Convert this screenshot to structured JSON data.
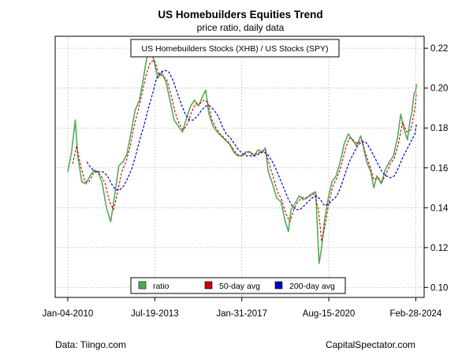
{
  "chart_data": {
    "type": "line",
    "title": "US Homebuilders Equities Trend",
    "subtitle": "price ratio, daily data",
    "inset_label": "US Homebuilders Stocks (XHB) / US Stocks (SPY)",
    "xlabel": "",
    "ylabel": "",
    "x_ticks": [
      "Jan-04-2010",
      "Jul-19-2013",
      "Jan-31-2017",
      "Aug-15-2020",
      "Feb-28-2024"
    ],
    "y_ticks": [
      "0.10",
      "0.12",
      "0.14",
      "0.16",
      "0.18",
      "0.20",
      "0.22"
    ],
    "xlim": [
      "2009-07-01",
      "2024-07-01"
    ],
    "ylim": [
      0.095,
      0.226
    ],
    "grid": true,
    "legend_position": "bottom-center",
    "series": [
      {
        "name": "ratio",
        "color": "#55aa55",
        "points": [
          [
            "2010-01-04",
            0.158
          ],
          [
            "2010-03-01",
            0.168
          ],
          [
            "2010-04-26",
            0.184
          ],
          [
            "2010-06-01",
            0.166
          ],
          [
            "2010-08-01",
            0.153
          ],
          [
            "2010-10-01",
            0.152
          ],
          [
            "2010-12-01",
            0.156
          ],
          [
            "2011-02-01",
            0.159
          ],
          [
            "2011-04-01",
            0.158
          ],
          [
            "2011-06-01",
            0.152
          ],
          [
            "2011-08-01",
            0.14
          ],
          [
            "2011-10-03",
            0.133
          ],
          [
            "2011-12-01",
            0.146
          ],
          [
            "2012-02-01",
            0.161
          ],
          [
            "2012-04-02",
            0.163
          ],
          [
            "2012-06-01",
            0.167
          ],
          [
            "2012-08-01",
            0.178
          ],
          [
            "2012-10-01",
            0.189
          ],
          [
            "2012-12-03",
            0.194
          ],
          [
            "2013-02-01",
            0.205
          ],
          [
            "2013-03-15",
            0.214
          ],
          [
            "2013-05-15",
            0.221
          ],
          [
            "2013-07-19",
            0.212
          ],
          [
            "2013-09-01",
            0.205
          ],
          [
            "2013-11-01",
            0.208
          ],
          [
            "2014-01-02",
            0.203
          ],
          [
            "2014-03-01",
            0.194
          ],
          [
            "2014-05-01",
            0.184
          ],
          [
            "2014-07-01",
            0.181
          ],
          [
            "2014-09-02",
            0.178
          ],
          [
            "2014-11-03",
            0.185
          ],
          [
            "2015-01-02",
            0.191
          ],
          [
            "2015-03-02",
            0.194
          ],
          [
            "2015-05-01",
            0.191
          ],
          [
            "2015-07-01",
            0.196
          ],
          [
            "2015-08-14",
            0.199
          ],
          [
            "2015-10-01",
            0.187
          ],
          [
            "2015-12-01",
            0.181
          ],
          [
            "2016-02-01",
            0.178
          ],
          [
            "2016-04-01",
            0.176
          ],
          [
            "2016-06-01",
            0.174
          ],
          [
            "2016-08-01",
            0.172
          ],
          [
            "2016-10-03",
            0.168
          ],
          [
            "2016-12-01",
            0.166
          ],
          [
            "2017-01-31",
            0.166
          ],
          [
            "2017-04-03",
            0.168
          ],
          [
            "2017-06-01",
            0.168
          ],
          [
            "2017-08-01",
            0.166
          ],
          [
            "2017-10-02",
            0.169
          ],
          [
            "2017-12-01",
            0.168
          ],
          [
            "2018-01-16",
            0.17
          ],
          [
            "2018-03-01",
            0.158
          ],
          [
            "2018-05-01",
            0.152
          ],
          [
            "2018-07-02",
            0.145
          ],
          [
            "2018-09-04",
            0.143
          ],
          [
            "2018-11-01",
            0.134
          ],
          [
            "2018-12-24",
            0.128
          ],
          [
            "2019-02-01",
            0.139
          ],
          [
            "2019-04-01",
            0.142
          ],
          [
            "2019-06-03",
            0.146
          ],
          [
            "2019-08-01",
            0.144
          ],
          [
            "2019-10-01",
            0.145
          ],
          [
            "2019-12-02",
            0.147
          ],
          [
            "2020-02-03",
            0.148
          ],
          [
            "2020-03-23",
            0.112
          ],
          [
            "2020-05-01",
            0.12
          ],
          [
            "2020-06-15",
            0.134
          ],
          [
            "2020-08-15",
            0.146
          ],
          [
            "2020-10-01",
            0.153
          ],
          [
            "2020-12-01",
            0.156
          ],
          [
            "2021-02-01",
            0.163
          ],
          [
            "2021-04-01",
            0.172
          ],
          [
            "2021-06-01",
            0.177
          ],
          [
            "2021-08-02",
            0.174
          ],
          [
            "2021-10-01",
            0.171
          ],
          [
            "2021-12-01",
            0.176
          ],
          [
            "2022-01-03",
            0.172
          ],
          [
            "2022-03-01",
            0.163
          ],
          [
            "2022-05-02",
            0.158
          ],
          [
            "2022-06-15",
            0.15
          ],
          [
            "2022-08-01",
            0.156
          ],
          [
            "2022-10-03",
            0.152
          ],
          [
            "2022-12-01",
            0.159
          ],
          [
            "2023-02-01",
            0.163
          ],
          [
            "2023-04-03",
            0.166
          ],
          [
            "2023-06-01",
            0.175
          ],
          [
            "2023-07-20",
            0.187
          ],
          [
            "2023-09-01",
            0.18
          ],
          [
            "2023-10-27",
            0.174
          ],
          [
            "2023-12-01",
            0.183
          ],
          [
            "2024-01-02",
            0.188
          ],
          [
            "2024-02-01",
            0.197
          ],
          [
            "2024-02-28",
            0.199
          ],
          [
            "2024-03-10",
            0.202
          ]
        ]
      },
      {
        "name": "50-day avg",
        "color": "#cc0000",
        "points": [
          [
            "2010-03-15",
            0.162
          ],
          [
            "2010-05-15",
            0.171
          ],
          [
            "2010-07-15",
            0.161
          ],
          [
            "2010-09-15",
            0.153
          ],
          [
            "2010-11-15",
            0.153
          ],
          [
            "2011-01-15",
            0.157
          ],
          [
            "2011-03-15",
            0.158
          ],
          [
            "2011-05-15",
            0.156
          ],
          [
            "2011-07-15",
            0.152
          ],
          [
            "2011-09-15",
            0.143
          ],
          [
            "2011-11-15",
            0.139
          ],
          [
            "2012-01-15",
            0.148
          ],
          [
            "2012-03-15",
            0.158
          ],
          [
            "2012-05-15",
            0.163
          ],
          [
            "2012-07-15",
            0.17
          ],
          [
            "2012-09-15",
            0.181
          ],
          [
            "2012-11-15",
            0.189
          ],
          [
            "2013-01-15",
            0.198
          ],
          [
            "2013-03-15",
            0.207
          ],
          [
            "2013-05-15",
            0.213
          ],
          [
            "2013-07-15",
            0.214
          ],
          [
            "2013-09-15",
            0.207
          ],
          [
            "2013-11-15",
            0.206
          ],
          [
            "2014-01-15",
            0.204
          ],
          [
            "2014-03-15",
            0.197
          ],
          [
            "2014-05-15",
            0.188
          ],
          [
            "2014-07-15",
            0.182
          ],
          [
            "2014-09-15",
            0.179
          ],
          [
            "2014-11-15",
            0.182
          ],
          [
            "2015-01-15",
            0.188
          ],
          [
            "2015-03-15",
            0.192
          ],
          [
            "2015-05-15",
            0.192
          ],
          [
            "2015-07-15",
            0.194
          ],
          [
            "2015-09-15",
            0.193
          ],
          [
            "2015-11-15",
            0.184
          ],
          [
            "2016-01-15",
            0.18
          ],
          [
            "2016-03-15",
            0.177
          ],
          [
            "2016-05-15",
            0.175
          ],
          [
            "2016-07-15",
            0.173
          ],
          [
            "2016-09-15",
            0.17
          ],
          [
            "2016-11-15",
            0.167
          ],
          [
            "2017-01-15",
            0.166
          ],
          [
            "2017-03-15",
            0.167
          ],
          [
            "2017-05-15",
            0.168
          ],
          [
            "2017-07-15",
            0.167
          ],
          [
            "2017-09-15",
            0.167
          ],
          [
            "2017-11-15",
            0.168
          ],
          [
            "2018-01-15",
            0.169
          ],
          [
            "2018-03-15",
            0.162
          ],
          [
            "2018-05-15",
            0.155
          ],
          [
            "2018-07-15",
            0.148
          ],
          [
            "2018-09-15",
            0.144
          ],
          [
            "2018-11-15",
            0.137
          ],
          [
            "2019-01-15",
            0.133
          ],
          [
            "2019-03-15",
            0.139
          ],
          [
            "2019-05-15",
            0.143
          ],
          [
            "2019-07-15",
            0.145
          ],
          [
            "2019-09-15",
            0.145
          ],
          [
            "2019-11-15",
            0.146
          ],
          [
            "2020-01-15",
            0.147
          ],
          [
            "2020-03-15",
            0.139
          ],
          [
            "2020-05-01",
            0.123
          ],
          [
            "2020-06-15",
            0.13
          ],
          [
            "2020-08-15",
            0.142
          ],
          [
            "2020-10-15",
            0.151
          ],
          [
            "2020-12-15",
            0.155
          ],
          [
            "2021-02-15",
            0.161
          ],
          [
            "2021-04-15",
            0.169
          ],
          [
            "2021-06-15",
            0.175
          ],
          [
            "2021-08-15",
            0.174
          ],
          [
            "2021-10-15",
            0.172
          ],
          [
            "2021-12-15",
            0.174
          ],
          [
            "2022-02-15",
            0.167
          ],
          [
            "2022-04-15",
            0.161
          ],
          [
            "2022-06-15",
            0.154
          ],
          [
            "2022-08-15",
            0.155
          ],
          [
            "2022-10-15",
            0.153
          ],
          [
            "2022-12-15",
            0.157
          ],
          [
            "2023-02-15",
            0.162
          ],
          [
            "2023-04-15",
            0.165
          ],
          [
            "2023-06-15",
            0.172
          ],
          [
            "2023-08-15",
            0.183
          ],
          [
            "2023-10-15",
            0.178
          ],
          [
            "2023-12-15",
            0.179
          ],
          [
            "2024-01-15",
            0.184
          ],
          [
            "2024-02-15",
            0.19
          ],
          [
            "2024-03-10",
            0.198
          ]
        ]
      },
      {
        "name": "200-day avg",
        "color": "#0000cc",
        "points": [
          [
            "2010-10-15",
            0.163
          ],
          [
            "2010-12-15",
            0.16
          ],
          [
            "2011-02-15",
            0.158
          ],
          [
            "2011-04-15",
            0.158
          ],
          [
            "2011-06-15",
            0.158
          ],
          [
            "2011-08-15",
            0.156
          ],
          [
            "2011-10-15",
            0.152
          ],
          [
            "2011-12-15",
            0.149
          ],
          [
            "2012-02-15",
            0.149
          ],
          [
            "2012-04-15",
            0.151
          ],
          [
            "2012-06-15",
            0.155
          ],
          [
            "2012-08-15",
            0.16
          ],
          [
            "2012-10-15",
            0.167
          ],
          [
            "2012-12-15",
            0.175
          ],
          [
            "2013-02-15",
            0.182
          ],
          [
            "2013-04-15",
            0.19
          ],
          [
            "2013-06-15",
            0.197
          ],
          [
            "2013-08-15",
            0.205
          ],
          [
            "2013-10-15",
            0.208
          ],
          [
            "2013-12-15",
            0.209
          ],
          [
            "2014-02-15",
            0.208
          ],
          [
            "2014-04-15",
            0.204
          ],
          [
            "2014-06-15",
            0.198
          ],
          [
            "2014-08-15",
            0.192
          ],
          [
            "2014-10-15",
            0.187
          ],
          [
            "2014-12-15",
            0.184
          ],
          [
            "2015-02-15",
            0.184
          ],
          [
            "2015-04-15",
            0.186
          ],
          [
            "2015-06-15",
            0.189
          ],
          [
            "2015-08-15",
            0.191
          ],
          [
            "2015-10-15",
            0.191
          ],
          [
            "2015-12-15",
            0.189
          ],
          [
            "2016-02-15",
            0.186
          ],
          [
            "2016-04-15",
            0.181
          ],
          [
            "2016-06-15",
            0.177
          ],
          [
            "2016-08-15",
            0.175
          ],
          [
            "2016-10-15",
            0.172
          ],
          [
            "2016-12-15",
            0.169
          ],
          [
            "2017-02-15",
            0.167
          ],
          [
            "2017-04-15",
            0.166
          ],
          [
            "2017-06-15",
            0.166
          ],
          [
            "2017-08-15",
            0.166
          ],
          [
            "2017-10-15",
            0.167
          ],
          [
            "2017-12-15",
            0.168
          ],
          [
            "2018-02-15",
            0.167
          ],
          [
            "2018-04-15",
            0.164
          ],
          [
            "2018-06-15",
            0.16
          ],
          [
            "2018-08-15",
            0.155
          ],
          [
            "2018-10-15",
            0.15
          ],
          [
            "2018-12-15",
            0.145
          ],
          [
            "2019-02-15",
            0.141
          ],
          [
            "2019-04-15",
            0.139
          ],
          [
            "2019-06-15",
            0.139
          ],
          [
            "2019-08-15",
            0.141
          ],
          [
            "2019-10-15",
            0.143
          ],
          [
            "2019-12-15",
            0.145
          ],
          [
            "2020-02-15",
            0.146
          ],
          [
            "2020-04-15",
            0.144
          ],
          [
            "2020-06-15",
            0.141
          ],
          [
            "2020-08-15",
            0.142
          ],
          [
            "2020-10-15",
            0.144
          ],
          [
            "2020-12-15",
            0.146
          ],
          [
            "2021-02-15",
            0.151
          ],
          [
            "2021-04-15",
            0.157
          ],
          [
            "2021-06-15",
            0.163
          ],
          [
            "2021-08-15",
            0.167
          ],
          [
            "2021-10-15",
            0.171
          ],
          [
            "2021-12-15",
            0.173
          ],
          [
            "2022-02-15",
            0.173
          ],
          [
            "2022-04-15",
            0.17
          ],
          [
            "2022-06-15",
            0.166
          ],
          [
            "2022-08-15",
            0.162
          ],
          [
            "2022-10-15",
            0.158
          ],
          [
            "2022-12-15",
            0.156
          ],
          [
            "2023-02-15",
            0.155
          ],
          [
            "2023-04-15",
            0.156
          ],
          [
            "2023-06-15",
            0.16
          ],
          [
            "2023-08-15",
            0.165
          ],
          [
            "2023-10-15",
            0.169
          ],
          [
            "2023-12-15",
            0.173
          ],
          [
            "2024-02-15",
            0.177
          ],
          [
            "2024-03-10",
            0.182
          ]
        ]
      }
    ]
  },
  "footer": {
    "left": "Data: Tiingo.com",
    "right": "CapitalSpectator.com"
  }
}
